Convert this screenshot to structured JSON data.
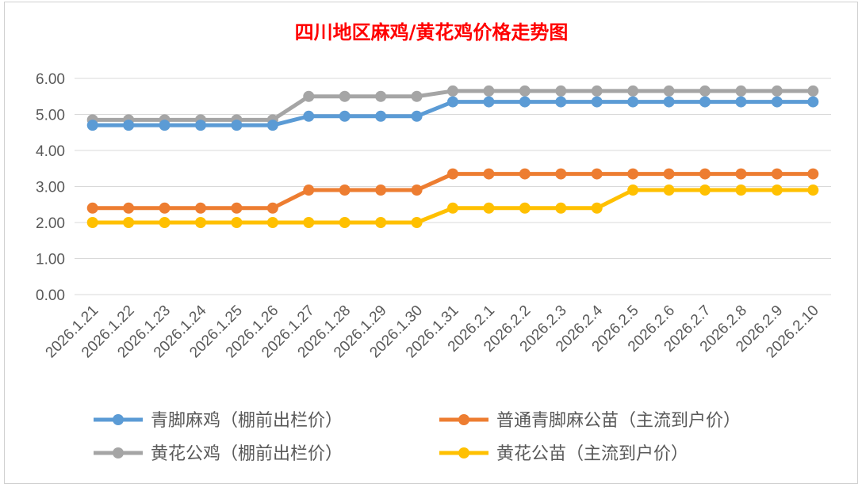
{
  "chart_data": {
    "type": "line",
    "title": "四川地区麻鸡/黄花鸡价格走势图",
    "title_color": "#ff0000",
    "categories": [
      "2026.1.21",
      "2026.1.22",
      "2026.1.23",
      "2026.1.24",
      "2026.1.25",
      "2026.1.26",
      "2026.1.27",
      "2026.1.28",
      "2026.1.29",
      "2026.1.30",
      "2026.1.31",
      "2026.2.1",
      "2026.2.2",
      "2026.2.3",
      "2026.2.4",
      "2026.2.5",
      "2026.2.6",
      "2026.2.7",
      "2026.2.8",
      "2026.2.9",
      "2026.2.10"
    ],
    "y_ticks": [
      "0.00",
      "1.00",
      "2.00",
      "3.00",
      "4.00",
      "5.00",
      "6.00"
    ],
    "ylim": [
      0,
      6
    ],
    "grid": true,
    "legend_position": "bottom",
    "series": [
      {
        "name": "青脚麻鸡（棚前出栏价）",
        "color": "#5b9bd5",
        "values": [
          4.7,
          4.7,
          4.7,
          4.7,
          4.7,
          4.7,
          4.95,
          4.95,
          4.95,
          4.95,
          5.35,
          5.35,
          5.35,
          5.35,
          5.35,
          5.35,
          5.35,
          5.35,
          5.35,
          5.35,
          5.35
        ]
      },
      {
        "name": "普通青脚麻公苗（主流到户价）",
        "color": "#ed7d31",
        "values": [
          2.4,
          2.4,
          2.4,
          2.4,
          2.4,
          2.4,
          2.9,
          2.9,
          2.9,
          2.9,
          3.35,
          3.35,
          3.35,
          3.35,
          3.35,
          3.35,
          3.35,
          3.35,
          3.35,
          3.35,
          3.35
        ]
      },
      {
        "name": "黄花公鸡（棚前出栏价）",
        "color": "#a5a5a5",
        "values": [
          4.85,
          4.85,
          4.85,
          4.85,
          4.85,
          4.85,
          5.5,
          5.5,
          5.5,
          5.5,
          5.65,
          5.65,
          5.65,
          5.65,
          5.65,
          5.65,
          5.65,
          5.65,
          5.65,
          5.65,
          5.65
        ]
      },
      {
        "name": "黄花公苗（主流到户价）",
        "color": "#ffc000",
        "values": [
          2.0,
          2.0,
          2.0,
          2.0,
          2.0,
          2.0,
          2.0,
          2.0,
          2.0,
          2.0,
          2.4,
          2.4,
          2.4,
          2.4,
          2.4,
          2.9,
          2.9,
          2.9,
          2.9,
          2.9,
          2.9
        ]
      }
    ]
  }
}
